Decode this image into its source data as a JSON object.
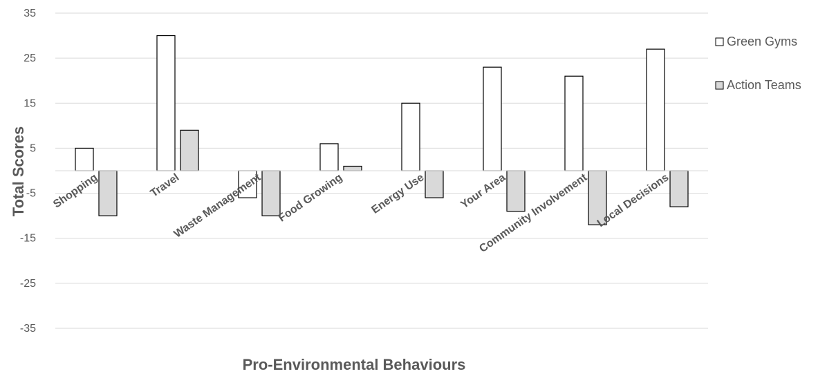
{
  "chart_data": {
    "type": "bar",
    "title": "",
    "xlabel": "Pro-Environmental Behaviours",
    "ylabel": "Total Scores",
    "ylim": [
      -35,
      35
    ],
    "yticks": [
      35,
      25,
      15,
      5,
      -5,
      -15,
      -25,
      -35
    ],
    "grid": true,
    "legend_position": "right",
    "categories": [
      "Shopping",
      "Travel",
      "Waste Management",
      "Food Growing",
      "Energy Use",
      "Your Area",
      "Community Involvement",
      "Local Decisions"
    ],
    "series": [
      {
        "name": "Green Gyms",
        "color": "#ffffff",
        "values": [
          5,
          30,
          -6,
          6,
          15,
          23,
          21,
          27
        ]
      },
      {
        "name": "Action Teams",
        "color": "#d9d9d9",
        "values": [
          -10,
          9,
          -10,
          1,
          -6,
          -9,
          -12,
          -8
        ]
      }
    ]
  }
}
